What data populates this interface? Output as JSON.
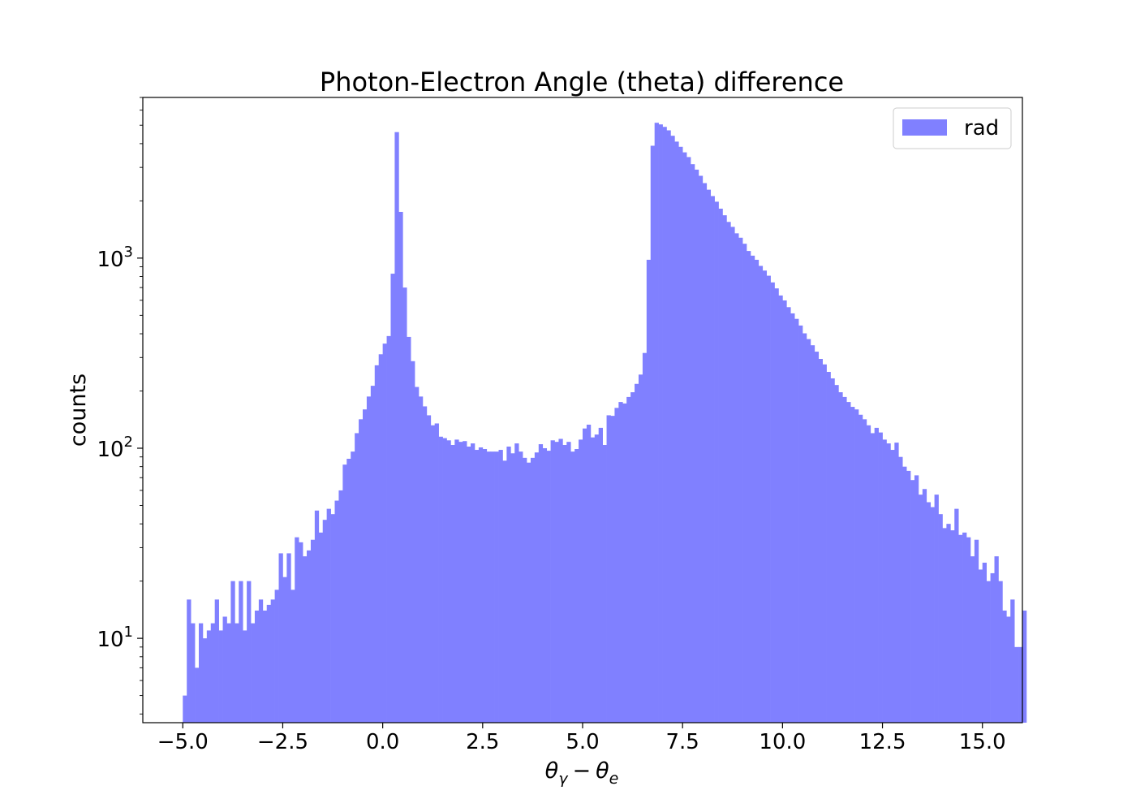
{
  "chart_data": {
    "type": "bar",
    "title": "Photon-Electron Angle (theta) difference",
    "xlabel": "θγ − θe",
    "xlabel_parts": {
      "a": "θ",
      "a_sub": "γ",
      "op": "−",
      "b": "θ",
      "b_sub": "e"
    },
    "ylabel": "counts",
    "y_scale": "log",
    "xlim": [
      -6,
      16
    ],
    "ylim": [
      3.6,
      7000
    ],
    "grid": false,
    "legend_position": "top-right",
    "bar_color": "#8080ff",
    "x_ticks": [
      "−5.0",
      "−2.5",
      "0.0",
      "2.5",
      "5.0",
      "7.5",
      "10.0",
      "12.5",
      "15.0"
    ],
    "x_tick_values": [
      -5,
      -2.5,
      0,
      2.5,
      5,
      7.5,
      10,
      12.5,
      15
    ],
    "y_ticks": [
      {
        "base": "10",
        "exp": "1",
        "value": 10
      },
      {
        "base": "10",
        "exp": "2",
        "value": 100
      },
      {
        "base": "10",
        "exp": "3",
        "value": 1000
      }
    ],
    "series": [
      {
        "name": "rad",
        "bin_start": -5.0,
        "bin_width": 0.1,
        "values": [
          5,
          16,
          12,
          7,
          12,
          10,
          11,
          12,
          16,
          11,
          13,
          12,
          20,
          12,
          20,
          11,
          20,
          12,
          14,
          16,
          14,
          15,
          16,
          18,
          28,
          21,
          28,
          18,
          34,
          32,
          27,
          29,
          33,
          47,
          36,
          42,
          48,
          45,
          53,
          60,
          82,
          88,
          96,
          120,
          142,
          160,
          187,
          213,
          273,
          312,
          355,
          389,
          828,
          4600,
          1750,
          700,
          385,
          287,
          210,
          187,
          166,
          149,
          132,
          135,
          115,
          113,
          110,
          104,
          111,
          108,
          109,
          102,
          106,
          98,
          101,
          99,
          96,
          96,
          96,
          98,
          86,
          102,
          94,
          106,
          96,
          89,
          84,
          89,
          95,
          105,
          100,
          97,
          110,
          108,
          112,
          104,
          108,
          96,
          99,
          111,
          127,
          133,
          114,
          118,
          128,
          104,
          149,
          148,
          163,
          175,
          172,
          186,
          197,
          218,
          244,
          317,
          980,
          3900,
          5150,
          5050,
          4900,
          4700,
          4400,
          4100,
          3850,
          3600,
          3400,
          3120,
          2920,
          2710,
          2480,
          2290,
          2120,
          1980,
          1820,
          1680,
          1550,
          1460,
          1350,
          1280,
          1190,
          1090,
          1030,
          980,
          910,
          860,
          808,
          745,
          693,
          636,
          599,
          552,
          512,
          479,
          442,
          402,
          375,
          348,
          322,
          295,
          276,
          252,
          233,
          215,
          197,
          186,
          175,
          165,
          160,
          150,
          142,
          132,
          120,
          128,
          121,
          111,
          106,
          98,
          107,
          90,
          80,
          76,
          68,
          72,
          57,
          61,
          52,
          49,
          57,
          45,
          38,
          40,
          37,
          48,
          35,
          36,
          34,
          27,
          33,
          23,
          25,
          20,
          22,
          27,
          20,
          14,
          13,
          16,
          9,
          9,
          14
        ]
      }
    ]
  }
}
